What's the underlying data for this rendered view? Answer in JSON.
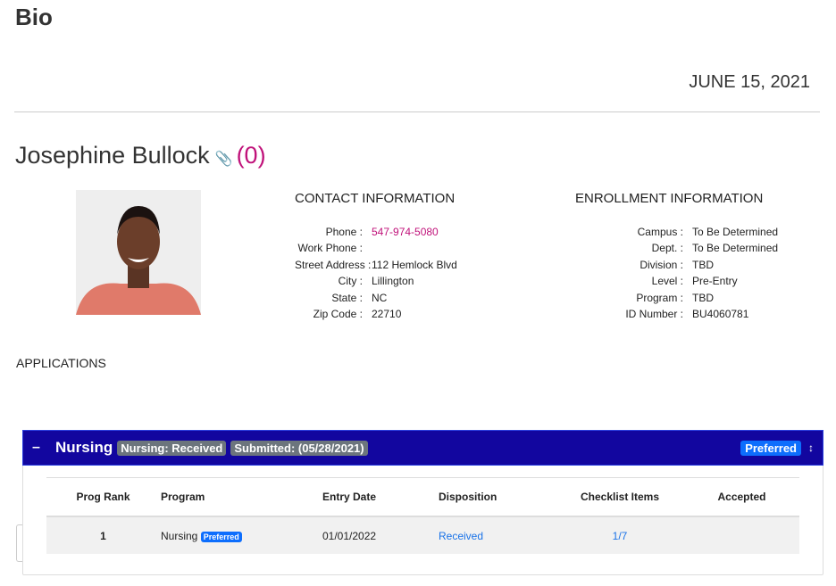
{
  "page": {
    "title": "Bio",
    "date": "JUNE 15, 2021"
  },
  "student": {
    "name": "Josephine Bullock",
    "count": "(0)"
  },
  "contact": {
    "heading": "CONTACT INFORMATION",
    "rows": [
      {
        "label": "Phone :",
        "value": "547-974-5080"
      },
      {
        "label": "Work Phone :",
        "value": ""
      },
      {
        "label": "Street Address :",
        "value": "112 Hemlock Blvd"
      },
      {
        "label": "City :",
        "value": "Lillington"
      },
      {
        "label": "State :",
        "value": "NC"
      },
      {
        "label": "Zip Code :",
        "value": "22710"
      }
    ]
  },
  "enrollment": {
    "heading": "ENROLLMENT INFORMATION",
    "rows": [
      {
        "label": "Campus :",
        "value": "To Be Determined"
      },
      {
        "label": "Dept. :",
        "value": "To Be Determined"
      },
      {
        "label": "Division :",
        "value": "TBD"
      },
      {
        "label": "Level :",
        "value": "Pre-Entry"
      },
      {
        "label": "Program :",
        "value": "TBD"
      },
      {
        "label": "ID Number :",
        "value": "BU4060781"
      }
    ]
  },
  "applications": {
    "heading": "APPLICATIONS",
    "panel": {
      "toggle": "–",
      "title": "Nursing",
      "status_badge": "Nursing: Received",
      "submitted_badge": "Submitted: (05/28/2021)",
      "preferred_badge": "Preferred",
      "sort_icon": "↕",
      "columns": [
        "Prog Rank",
        "Program",
        "Entry Date",
        "Disposition",
        "Checklist Items",
        "Accepted"
      ],
      "rows": [
        {
          "rank": "1",
          "program": "Nursing",
          "program_badge": "Preferred",
          "entry_date": "01/01/2022",
          "disposition": "Received",
          "checklist": "1/7",
          "accepted": ""
        }
      ]
    }
  },
  "colors": {
    "header": "#12069f",
    "accent": "#c0127a",
    "link": "#1a73e8",
    "badge_blue": "#0d6efd"
  }
}
